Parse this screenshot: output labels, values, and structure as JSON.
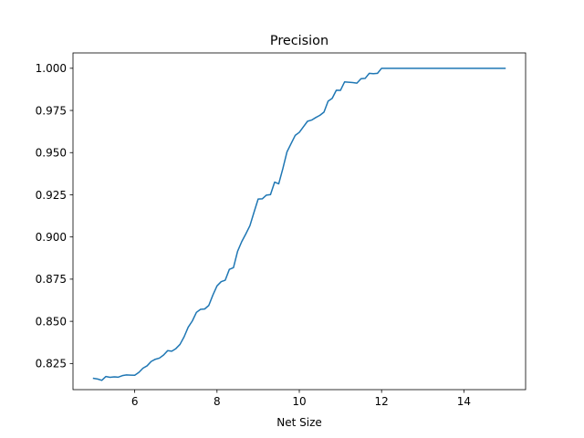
{
  "chart_data": {
    "type": "line",
    "title": "Precision",
    "xlabel": "Net Size",
    "ylabel": "",
    "xlim": [
      4.5,
      15.5
    ],
    "ylim": [
      0.8095,
      1.0091
    ],
    "xticks": [
      6,
      8,
      10,
      12,
      14
    ],
    "yticks": [
      0.825,
      0.85,
      0.875,
      0.9,
      0.925,
      0.95,
      0.975,
      1.0
    ],
    "xtick_labels": [
      "6",
      "8",
      "10",
      "12",
      "14"
    ],
    "ytick_labels": [
      "0.825",
      "0.850",
      "0.875",
      "0.900",
      "0.925",
      "0.950",
      "0.975",
      "1.000"
    ],
    "grid": false,
    "legend": null,
    "series": [
      {
        "color": "#1f77b4",
        "x": [
          5.0,
          5.1,
          5.2,
          5.3,
          5.4,
          5.5,
          5.6,
          5.7,
          5.8,
          5.9,
          6.0,
          6.1,
          6.2,
          6.3,
          6.4,
          6.5,
          6.6,
          6.7,
          6.8,
          6.9,
          7.0,
          7.1,
          7.2,
          7.3,
          7.4,
          7.5,
          7.6,
          7.7,
          7.8,
          7.9,
          8.0,
          8.1,
          8.2,
          8.3,
          8.4,
          8.5,
          8.6,
          8.7,
          8.8,
          8.9,
          9.0,
          9.1,
          9.2,
          9.3,
          9.4,
          9.5,
          9.6,
          9.7,
          9.8,
          9.9,
          10.0,
          10.1,
          10.2,
          10.3,
          10.4,
          10.5,
          10.6,
          10.7,
          10.8,
          10.9,
          11.0,
          11.1,
          11.2,
          11.3,
          11.4,
          11.5,
          11.6,
          11.7,
          11.8,
          11.9,
          12.0,
          12.1,
          12.2,
          12.3,
          12.4,
          12.5,
          12.6,
          12.7,
          12.8,
          12.9,
          13.0,
          13.1,
          13.2,
          13.3,
          13.4,
          13.5,
          13.6,
          13.7,
          13.8,
          13.9,
          14.0,
          14.1,
          14.2,
          14.3,
          14.4,
          14.5,
          14.6,
          14.7,
          14.8,
          14.9,
          15.0
        ],
        "y": [
          0.8162,
          0.8158,
          0.815,
          0.8173,
          0.8168,
          0.8171,
          0.8169,
          0.8178,
          0.8182,
          0.8181,
          0.818,
          0.8197,
          0.8222,
          0.8236,
          0.8262,
          0.8275,
          0.8282,
          0.83,
          0.8326,
          0.8323,
          0.8338,
          0.8363,
          0.8408,
          0.8465,
          0.8502,
          0.8553,
          0.8571,
          0.8573,
          0.8594,
          0.8656,
          0.871,
          0.8735,
          0.8744,
          0.8808,
          0.8818,
          0.8915,
          0.8972,
          0.9018,
          0.9067,
          0.9147,
          0.9225,
          0.9226,
          0.9248,
          0.9251,
          0.9325,
          0.9315,
          0.9405,
          0.9504,
          0.9553,
          0.9602,
          0.962,
          0.9653,
          0.9686,
          0.9693,
          0.9708,
          0.9721,
          0.974,
          0.9805,
          0.9822,
          0.987,
          0.9869,
          0.9919,
          0.9917,
          0.9915,
          0.9912,
          0.9938,
          0.994,
          0.997,
          0.9968,
          0.997,
          1.0,
          1.0,
          1.0,
          1.0,
          1.0,
          1.0,
          1.0,
          1.0,
          1.0,
          1.0,
          1.0,
          1.0,
          1.0,
          1.0,
          1.0,
          1.0,
          1.0,
          1.0,
          1.0,
          1.0,
          1.0,
          1.0,
          1.0,
          1.0,
          1.0,
          1.0,
          1.0,
          1.0,
          1.0,
          1.0,
          1.0
        ]
      }
    ]
  }
}
